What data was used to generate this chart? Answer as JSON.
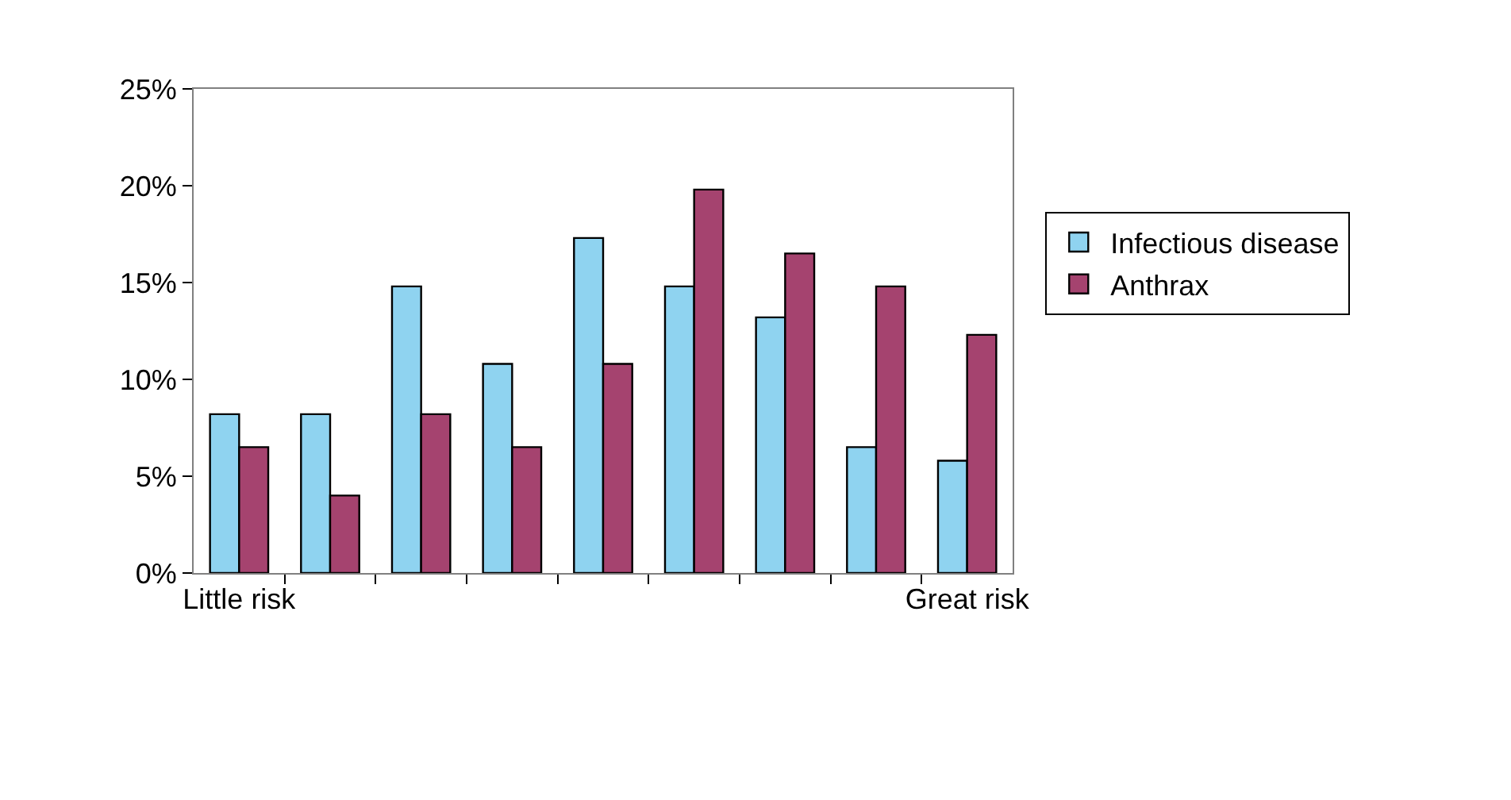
{
  "chart_data": {
    "type": "bar",
    "categories": [
      "Little risk",
      null,
      null,
      null,
      null,
      null,
      null,
      null,
      "Great risk"
    ],
    "series": [
      {
        "name": "Infectious disease",
        "color": "#8fd3f0",
        "values": [
          8.2,
          8.2,
          14.8,
          10.8,
          17.3,
          14.8,
          13.2,
          6.5,
          5.8
        ]
      },
      {
        "name": "Anthrax",
        "color": "#a5436f",
        "values": [
          6.5,
          4.0,
          8.2,
          6.5,
          10.8,
          19.8,
          16.5,
          14.8,
          12.3
        ]
      }
    ],
    "ylim": [
      0,
      25
    ],
    "yticks": [
      {
        "value": 0,
        "label": "0%"
      },
      {
        "value": 5,
        "label": "5%"
      },
      {
        "value": 10,
        "label": "10%"
      },
      {
        "value": 15,
        "label": "15%"
      },
      {
        "value": 20,
        "label": "20%"
      },
      {
        "value": 25,
        "label": "25%"
      }
    ],
    "legend": "right"
  }
}
